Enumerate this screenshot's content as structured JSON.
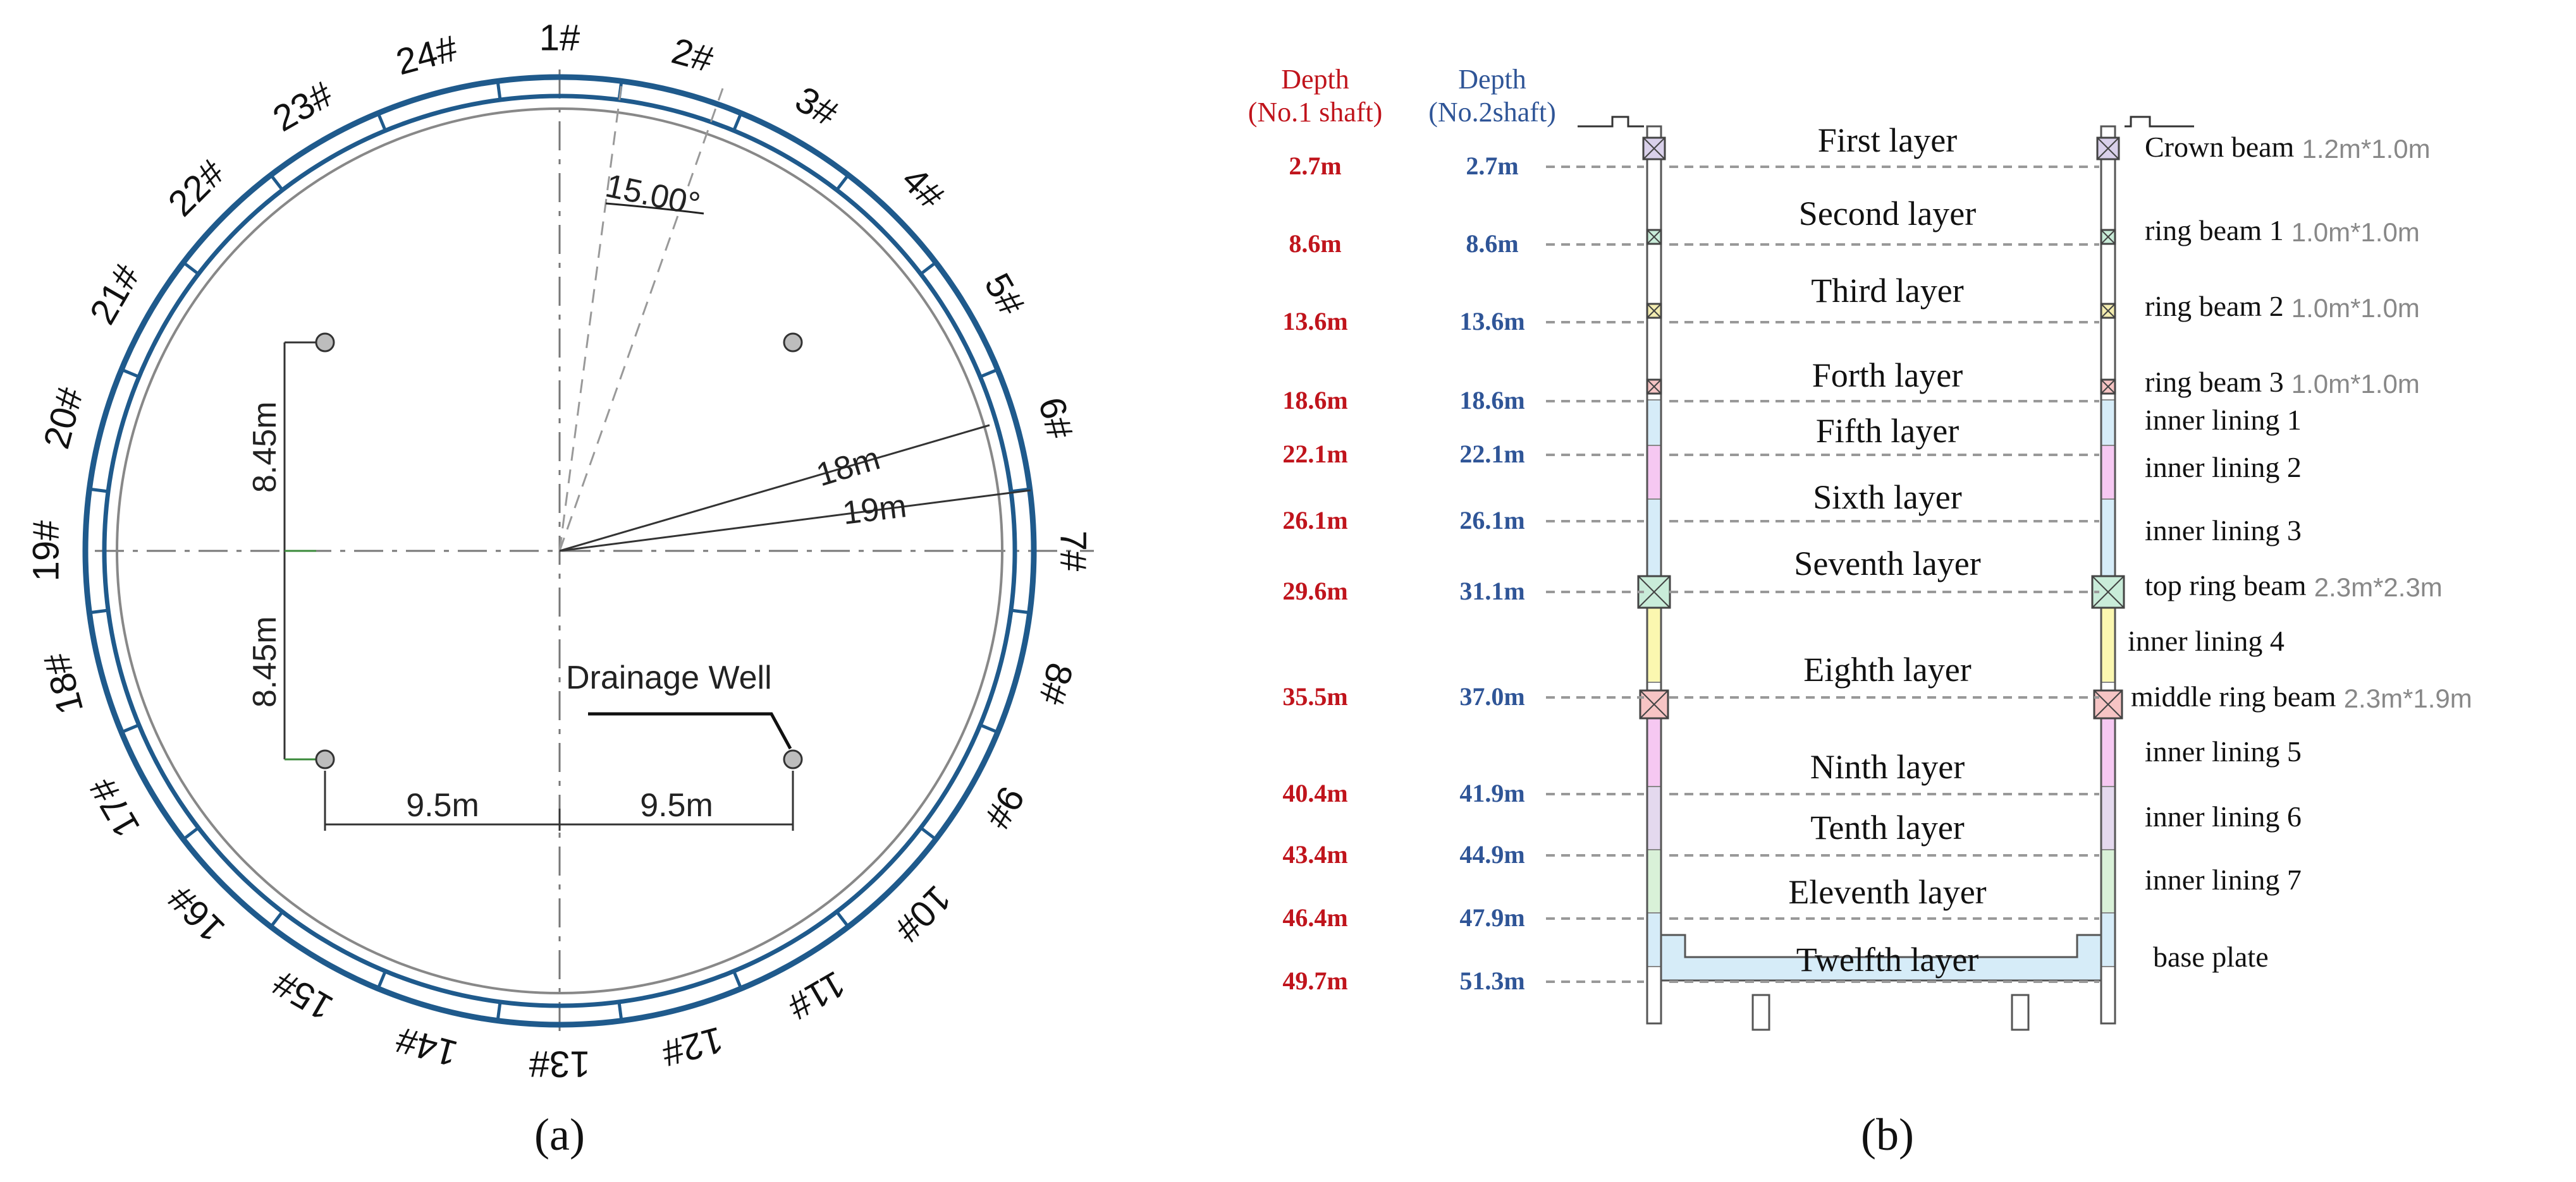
{
  "figure": {
    "panel_a_label": "(a)",
    "panel_b_label": "(b)"
  },
  "panel_a": {
    "segments": [
      "1#",
      "2#",
      "3#",
      "4#",
      "5#",
      "6#",
      "7#",
      "8#",
      "9#",
      "10#",
      "11#",
      "12#",
      "13#",
      "14#",
      "15#",
      "16#",
      "17#",
      "18#",
      "19#",
      "20#",
      "21#",
      "22#",
      "23#",
      "24#"
    ],
    "angle_label": "15.00°",
    "radius_inner_label": "18m",
    "radius_outer_label": "19m",
    "vertical_dim_top": "8.45m",
    "vertical_dim_bottom": "8.45m",
    "horizontal_dim_left": "9.5m",
    "horizontal_dim_right": "9.5m",
    "drainage_label": "Drainage Well",
    "colors": {
      "ring": "#1f5a8c",
      "inner_circle": "#888888",
      "well": "#bdbdbd"
    }
  },
  "panel_b": {
    "header_no1": [
      "Depth",
      "(No.1 shaft)"
    ],
    "header_no2": [
      "Depth",
      "(No.2shaft)"
    ],
    "depths_no1": [
      "2.7m",
      "8.6m",
      "13.6m",
      "18.6m",
      "22.1m",
      "26.1m",
      "29.6m",
      "35.5m",
      "40.4m",
      "43.4m",
      "46.4m",
      "49.7m"
    ],
    "depths_no2": [
      "2.7m",
      "8.6m",
      "13.6m",
      "18.6m",
      "22.1m",
      "26.1m",
      "31.1m",
      "37.0m",
      "41.9m",
      "44.9m",
      "47.9m",
      "51.3m"
    ],
    "layers": [
      "First layer",
      "Second layer",
      "Third layer",
      "Forth layer",
      "Fifth layer",
      "Sixth layer",
      "Seventh layer",
      "Eighth layer",
      "Ninth layer",
      "Tenth layer",
      "Eleventh layer",
      "Twelfth layer"
    ],
    "components": [
      {
        "name": "Crown beam",
        "size": "1.2m*1.0m"
      },
      {
        "name": "ring beam 1",
        "size": "1.0m*1.0m"
      },
      {
        "name": "ring beam 2",
        "size": "1.0m*1.0m"
      },
      {
        "name": "ring beam 3",
        "size": "1.0m*1.0m"
      },
      {
        "name": "inner lining 1",
        "size": ""
      },
      {
        "name": "inner lining 2",
        "size": ""
      },
      {
        "name": "inner lining 3",
        "size": ""
      },
      {
        "name": "top ring beam",
        "size": "2.3m*2.3m"
      },
      {
        "name": "inner lining 4",
        "size": ""
      },
      {
        "name": "middle ring beam",
        "size": "2.3m*1.9m"
      },
      {
        "name": "inner lining 5",
        "size": ""
      },
      {
        "name": "inner lining 6",
        "size": ""
      },
      {
        "name": "inner lining 7",
        "size": ""
      },
      {
        "name": "base plate",
        "size": ""
      }
    ],
    "colors": {
      "depth_no1": "#c0141c",
      "depth_no2": "#2f5597",
      "lining_blue": "#d6ecf8",
      "lining_pink": "#f6c8f2",
      "lining_yellow": "#fbf7b0",
      "lining_green": "#d9f1d8",
      "lining_lilac": "#e4d9ee",
      "beam_green": "#c9ecd9",
      "beam_red": "#f6c4c4",
      "base_plate": "#d6ecf8"
    }
  }
}
